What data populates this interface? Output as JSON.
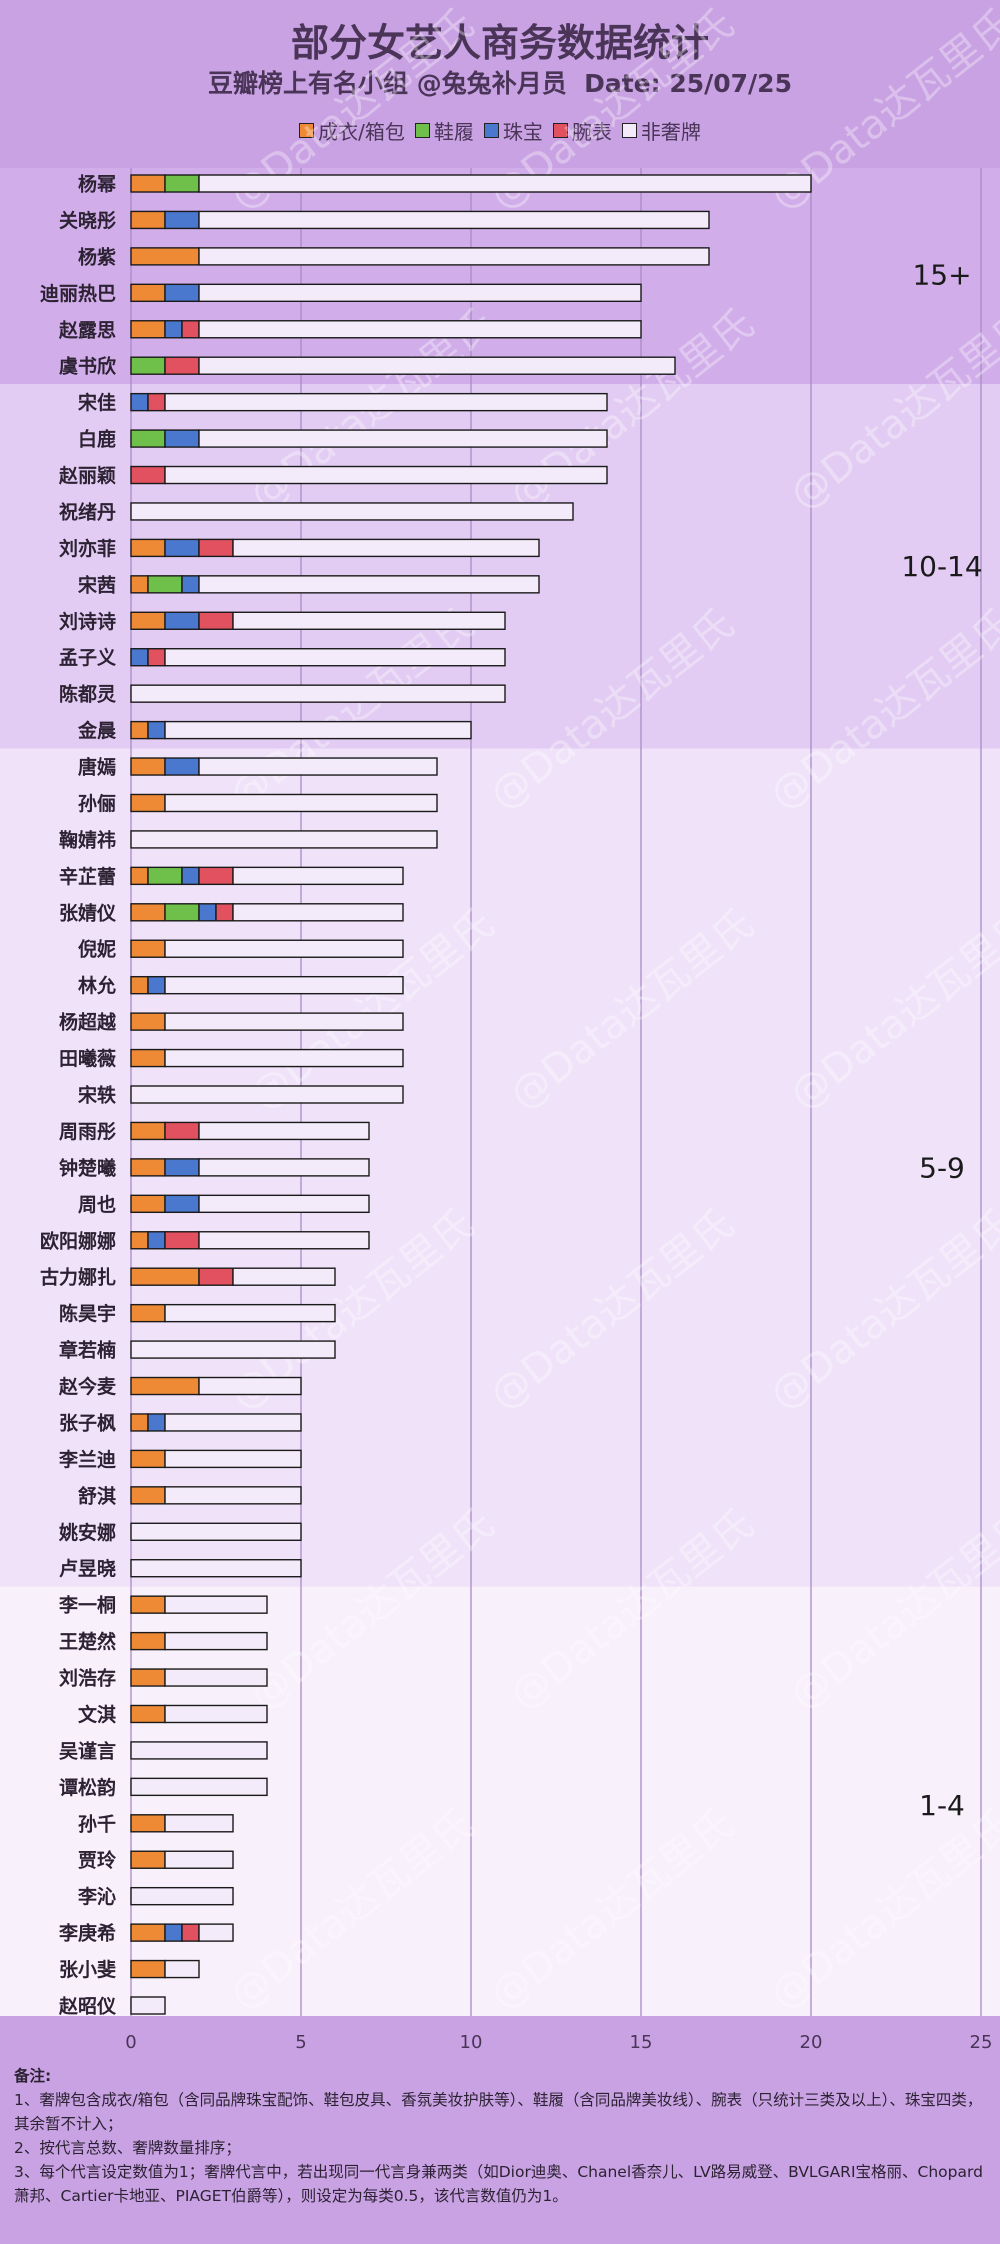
{
  "header": {
    "title": "部分女艺人商务数据统计",
    "subtitle": "豆瓣榜上有名小组 @兔兔补月员  Date: 25/07/25"
  },
  "colors": {
    "成衣/箱包": "#ee8a35",
    "鞋履": "#6fc04a",
    "珠宝": "#4a78cf",
    "腕表": "#e2515f",
    "非奢牌": "#f3ebf9",
    "band_15plus": "#d1aeea",
    "band_10_14": "#e3ccf3",
    "band_5_9": "#f0e3f9",
    "band_1_4": "#f8f1fc"
  },
  "notes": {
    "heading": "备注:",
    "lines": [
      "1、奢牌包含成衣/箱包（含同品牌珠宝配饰、鞋包皮具、香氛美妆护肤等）、鞋履（含同品牌美妆线）、腕表（只统计三类及以上）、珠宝四类，其余暂不计入；",
      "2、按代言总数、奢牌数量排序；",
      "3、每个代言设定数值为1；奢牌代言中，若出现同一代言身兼两类（如Dior迪奥、Chanel香奈儿、LV路易威登、BVLGARI宝格丽、Chopard萧邦、Cartier卡地亚、PIAGET伯爵等），则设定为每类0.5，该代言数值仍为1。"
    ]
  },
  "watermark": "@Data达瓦里氏",
  "chart_data": {
    "type": "bar",
    "orientation": "horizontal",
    "stacked": true,
    "title": "部分女艺人商务数据统计",
    "subtitle": "豆瓣榜上有名小组 @兔兔补月员  Date: 25/07/25",
    "xlabel": "",
    "ylabel": "",
    "xlim": [
      0,
      25
    ],
    "xticks": [
      0,
      5,
      10,
      15,
      20,
      25
    ],
    "grid": true,
    "legend_position": "top",
    "series_names": [
      "成衣/箱包",
      "鞋履",
      "珠宝",
      "腕表",
      "非奢牌"
    ],
    "groups": [
      {
        "label": "15+",
        "from": "杨幂",
        "to": "虞书欣"
      },
      {
        "label": "10-14",
        "from": "宋佳",
        "to": "金晨"
      },
      {
        "label": "5-9",
        "from": "唐嫣",
        "to": "卢昱晓"
      },
      {
        "label": "1-4",
        "from": "李一桐",
        "to": "赵昭仪"
      }
    ],
    "categories": [
      "杨幂",
      "关晓彤",
      "杨紫",
      "迪丽热巴",
      "赵露思",
      "虞书欣",
      "宋佳",
      "白鹿",
      "赵丽颖",
      "祝绪丹",
      "刘亦菲",
      "宋茜",
      "刘诗诗",
      "孟子义",
      "陈都灵",
      "金晨",
      "唐嫣",
      "孙俪",
      "鞠婧祎",
      "辛芷蕾",
      "张婧仪",
      "倪妮",
      "林允",
      "杨超越",
      "田曦薇",
      "宋轶",
      "周雨彤",
      "钟楚曦",
      "周也",
      "欧阳娜娜",
      "古力娜扎",
      "陈昊宇",
      "章若楠",
      "赵今麦",
      "张子枫",
      "李兰迪",
      "舒淇",
      "姚安娜",
      "卢昱晓",
      "李一桐",
      "王楚然",
      "刘浩存",
      "文淇",
      "吴谨言",
      "谭松韵",
      "孙千",
      "贾玲",
      "李沁",
      "李庚希",
      "张小斐",
      "赵昭仪"
    ],
    "series": [
      {
        "name": "成衣/箱包",
        "values": [
          1,
          1,
          2,
          1,
          1,
          0,
          0,
          0,
          0,
          0,
          1,
          0.5,
          1,
          0,
          0,
          0.5,
          1,
          1,
          0,
          0.5,
          1,
          1,
          0.5,
          1,
          1,
          0,
          1,
          1,
          1,
          0.5,
          2,
          1,
          0,
          2,
          0.5,
          1,
          1,
          0,
          0,
          1,
          1,
          1,
          1,
          0,
          0,
          1,
          1,
          0,
          1,
          1,
          0
        ]
      },
      {
        "name": "鞋履",
        "values": [
          1,
          0,
          0,
          0,
          0,
          1,
          0,
          1,
          0,
          0,
          0,
          1,
          0,
          0,
          0,
          0,
          0,
          0,
          0,
          1,
          1,
          0,
          0,
          0,
          0,
          0,
          0,
          0,
          0,
          0,
          0,
          0,
          0,
          0,
          0,
          0,
          0,
          0,
          0,
          0,
          0,
          0,
          0,
          0,
          0,
          0,
          0,
          0,
          0,
          0,
          0
        ]
      },
      {
        "name": "珠宝",
        "values": [
          0,
          1,
          0,
          1,
          0.5,
          0,
          0.5,
          1,
          0,
          0,
          1,
          0.5,
          1,
          0.5,
          0,
          0.5,
          1,
          0,
          0,
          0.5,
          0.5,
          0,
          0.5,
          0,
          0,
          0,
          0,
          1,
          1,
          0.5,
          0,
          0,
          0,
          0,
          0.5,
          0,
          0,
          0,
          0,
          0,
          0,
          0,
          0,
          0,
          0,
          0,
          0,
          0,
          0.5,
          0,
          0
        ]
      },
      {
        "name": "腕表",
        "values": [
          0,
          0,
          0,
          0,
          0.5,
          1,
          0.5,
          0,
          1,
          0,
          1,
          0,
          1,
          0.5,
          0,
          0,
          0,
          0,
          0,
          1,
          0.5,
          0,
          0,
          0,
          0,
          0,
          1,
          0,
          0,
          1,
          1,
          0,
          0,
          0,
          0,
          0,
          0,
          0,
          0,
          0,
          0,
          0,
          0,
          0,
          0,
          0,
          0,
          0,
          0.5,
          0,
          0
        ]
      },
      {
        "name": "非奢牌",
        "values": [
          18,
          15,
          15,
          13,
          13,
          14,
          13,
          12,
          13,
          13,
          9,
          10,
          8,
          10,
          11,
          9,
          7,
          8,
          9,
          5,
          5,
          7,
          7,
          7,
          7,
          8,
          5,
          5,
          5,
          5,
          3,
          5,
          6,
          3,
          4,
          4,
          4,
          5,
          5,
          3,
          3,
          3,
          3,
          4,
          4,
          2,
          2,
          3,
          1,
          1,
          1
        ]
      }
    ]
  }
}
